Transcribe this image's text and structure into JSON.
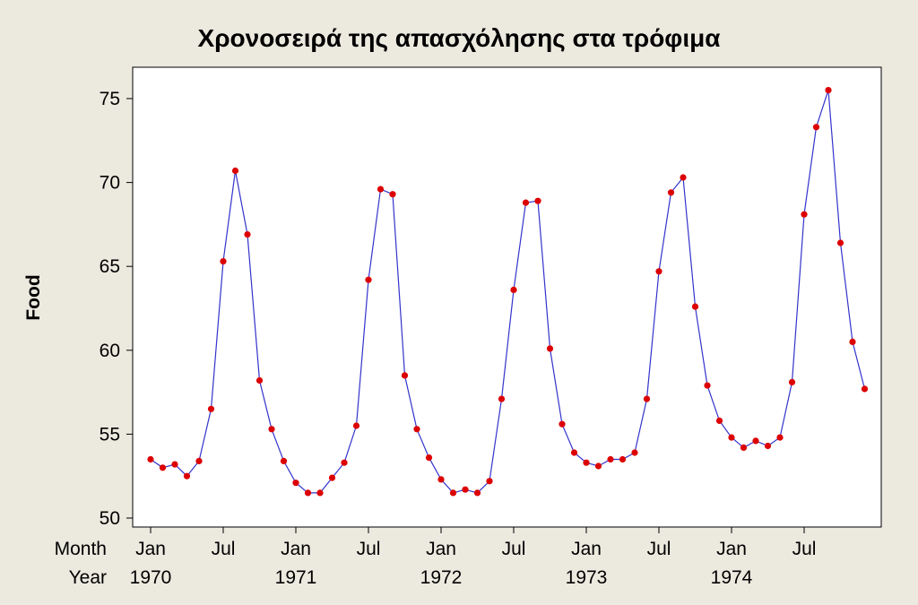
{
  "chart_data": {
    "type": "line",
    "title": "Χρονοσειρά της απασχόλησης στα τρόφιμα",
    "ylabel": "Food",
    "xlabel": "",
    "ylim": [
      50,
      75
    ],
    "yticks": [
      50,
      55,
      60,
      65,
      70,
      75
    ],
    "grid": false,
    "x_axis": {
      "row_labels": [
        "Month",
        "Year"
      ],
      "month_ticks": [
        {
          "index": 0,
          "label": "Jan"
        },
        {
          "index": 6,
          "label": "Jul"
        },
        {
          "index": 12,
          "label": "Jan"
        },
        {
          "index": 18,
          "label": "Jul"
        },
        {
          "index": 24,
          "label": "Jan"
        },
        {
          "index": 30,
          "label": "Jul"
        },
        {
          "index": 36,
          "label": "Jan"
        },
        {
          "index": 42,
          "label": "Jul"
        },
        {
          "index": 48,
          "label": "Jan"
        },
        {
          "index": 54,
          "label": "Jul"
        }
      ],
      "year_ticks": [
        {
          "index": 0,
          "label": "1970"
        },
        {
          "index": 12,
          "label": "1971"
        },
        {
          "index": 24,
          "label": "1972"
        },
        {
          "index": 36,
          "label": "1973"
        },
        {
          "index": 48,
          "label": "1974"
        }
      ]
    },
    "series": [
      {
        "color": "#3333cc",
        "marker_color": "#dd0000",
        "values": [
          53.5,
          53.0,
          53.2,
          52.5,
          53.4,
          56.5,
          65.3,
          70.7,
          66.9,
          58.2,
          55.3,
          53.4,
          52.1,
          51.5,
          51.5,
          52.4,
          53.3,
          55.5,
          64.2,
          69.6,
          69.3,
          58.5,
          55.3,
          53.6,
          52.3,
          51.5,
          51.7,
          51.5,
          52.2,
          57.1,
          63.6,
          68.8,
          68.9,
          60.1,
          55.6,
          53.9,
          53.3,
          53.1,
          53.5,
          53.5,
          53.9,
          57.1,
          64.7,
          69.4,
          70.3,
          62.6,
          57.9,
          55.8,
          54.8,
          54.2,
          54.6,
          54.3,
          54.8,
          58.1,
          68.1,
          73.3,
          75.5,
          66.4,
          60.5,
          57.7
        ]
      }
    ]
  }
}
